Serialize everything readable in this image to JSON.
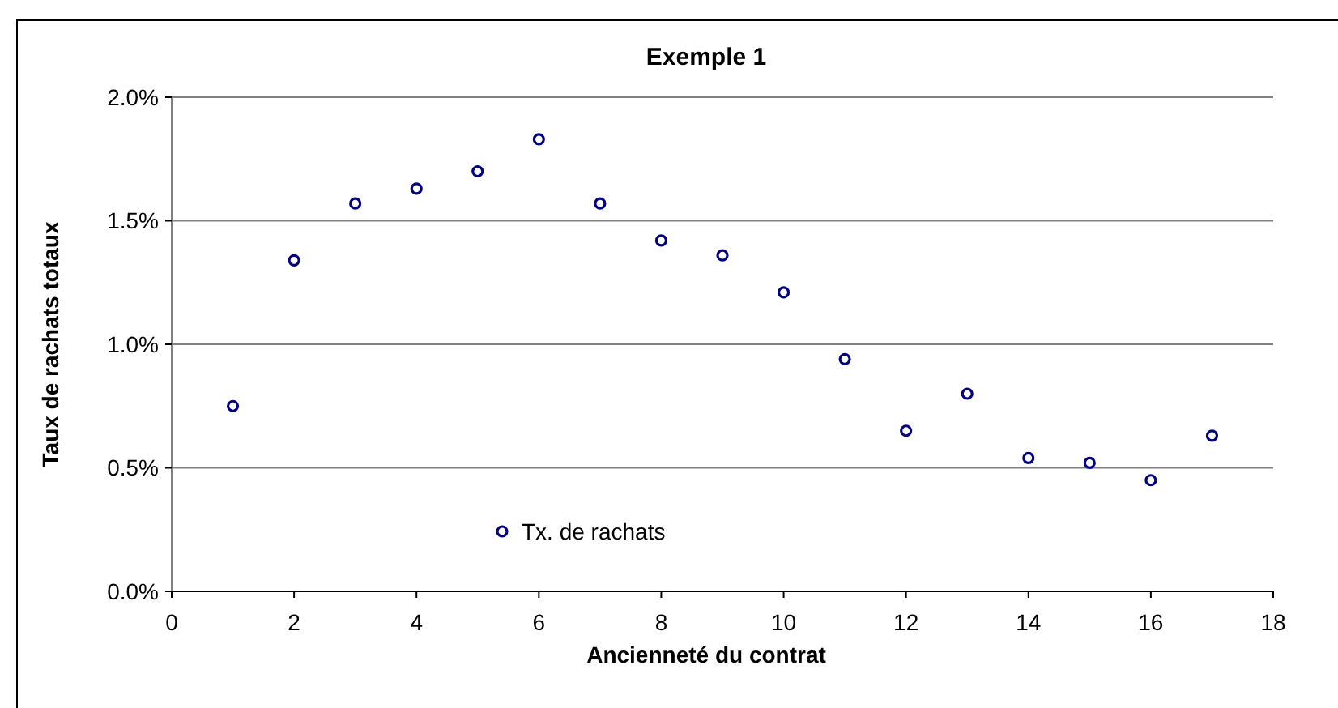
{
  "chart_data": {
    "type": "scatter",
    "title": "Exemple 1",
    "xlabel": "Ancienneté du contrat",
    "ylabel": "Taux de rachats totaux",
    "x": [
      1,
      2,
      3,
      4,
      5,
      6,
      7,
      8,
      9,
      10,
      11,
      12,
      13,
      14,
      15,
      16,
      17
    ],
    "series": [
      {
        "name": "Tx. de rachats",
        "color": "#000080",
        "values": [
          0.75,
          1.34,
          1.57,
          1.63,
          1.7,
          1.83,
          1.57,
          1.42,
          1.36,
          1.21,
          0.94,
          0.65,
          0.8,
          0.54,
          0.52,
          0.45,
          0.63
        ]
      }
    ],
    "xlim": [
      0,
      18
    ],
    "xticks": [
      0,
      2,
      4,
      6,
      8,
      10,
      12,
      14,
      16,
      18
    ],
    "ylim": [
      0,
      2
    ],
    "yticks": [
      {
        "value": 0,
        "label": "0.0%"
      },
      {
        "value": 0.5,
        "label": "0.5%"
      },
      {
        "value": 1,
        "label": "1.0%"
      },
      {
        "value": 1.5,
        "label": "1.5%"
      },
      {
        "value": 2,
        "label": "2.0%"
      }
    ],
    "grid": "y",
    "legend": "bottom left",
    "marker": "circle"
  }
}
